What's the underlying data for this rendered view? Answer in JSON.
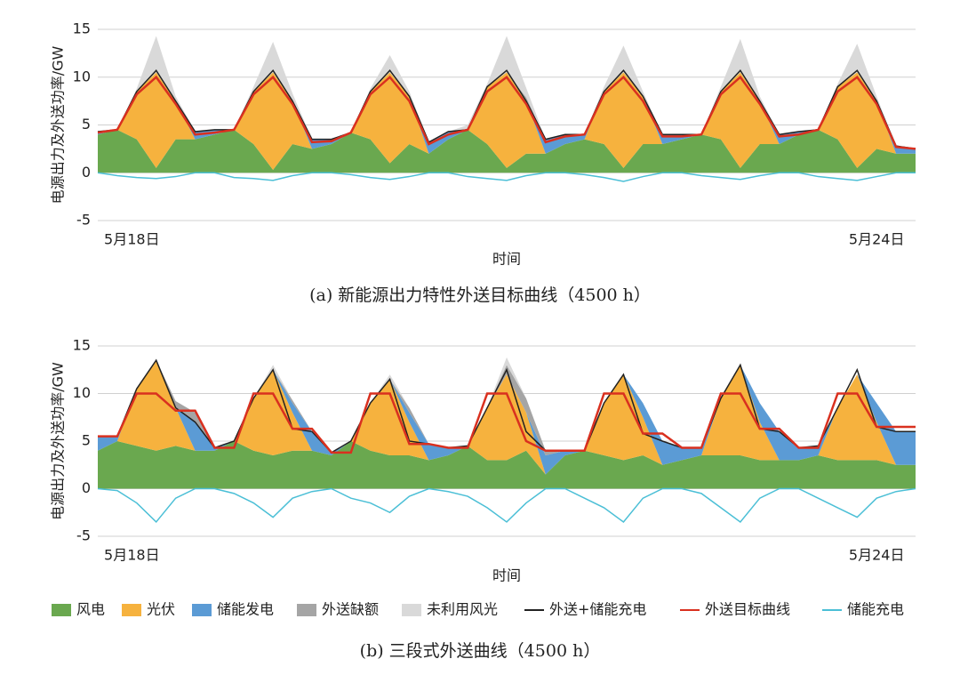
{
  "chart_data": [
    {
      "type": "area",
      "caption": "(a) 新能源出力特性外送目标曲线（4500 h）",
      "ylabel": "电源出力及外送功率/GW",
      "xlabel": "时间",
      "x": [
        0,
        4,
        8,
        12,
        16,
        20,
        24,
        28,
        32,
        36,
        40,
        44,
        48,
        52,
        56,
        60,
        64,
        68,
        72,
        76,
        80,
        84,
        88,
        92,
        96,
        100,
        104,
        108,
        112,
        116,
        120,
        124,
        128,
        132,
        136,
        140,
        144,
        148,
        152,
        156,
        160,
        164,
        168
      ],
      "xlim": [
        0,
        168
      ],
      "xticks": [
        {
          "value": 7,
          "label": "5月18日"
        },
        {
          "value": 160,
          "label": "5月24日"
        }
      ],
      "ylim": [
        -5,
        15
      ],
      "yticks": [
        -5,
        0,
        5,
        10,
        15
      ],
      "grid": true,
      "series": [
        {
          "kind": "area",
          "color": "#6aa84f",
          "values": [
            4,
            4.5,
            3.5,
            0.5,
            3.5,
            3.5,
            4,
            4.5,
            3,
            0.3,
            3,
            2.5,
            3,
            4.2,
            3.5,
            1,
            3,
            2,
            3.5,
            4.5,
            3,
            0.5,
            2,
            2,
            3,
            3.5,
            3,
            0.5,
            3,
            3,
            3.5,
            4,
            3.5,
            0.5,
            3,
            3,
            4,
            4.5,
            3.5,
            0.5,
            2.5,
            2,
            2
          ]
        },
        {
          "kind": "area",
          "color": "#f6b23e",
          "values": [
            0,
            0,
            5,
            10,
            4,
            0,
            0,
            0,
            5.5,
            10.2,
            4.5,
            0,
            0,
            0,
            5,
            9.5,
            5,
            0,
            0,
            0,
            6,
            10,
            5.5,
            0,
            0,
            0,
            5.5,
            10,
            5,
            0,
            0,
            0,
            5,
            10,
            4.5,
            0,
            0,
            0,
            5.5,
            10,
            5,
            0,
            0
          ]
        },
        {
          "kind": "area",
          "color": "#5b9bd5",
          "values": [
            0.3,
            0,
            0,
            0,
            0,
            0.8,
            0.5,
            0,
            0,
            0,
            0,
            1,
            0.5,
            0,
            0,
            0,
            0,
            1.2,
            0.8,
            0,
            0,
            0,
            0,
            1.5,
            1,
            0.5,
            0,
            0,
            0,
            1,
            0.5,
            0,
            0,
            0,
            0,
            1,
            0.3,
            0,
            0,
            0,
            0,
            0.8,
            0.5
          ]
        },
        {
          "kind": "area",
          "color": "#a5a5a5",
          "values": [
            0,
            0,
            0,
            0,
            0,
            0,
            0,
            0,
            0,
            0,
            0,
            0,
            0,
            0,
            0,
            0,
            0,
            0,
            0,
            0,
            0,
            0,
            0.4,
            0,
            0,
            0,
            0,
            0,
            0,
            0,
            0,
            0,
            0,
            0,
            0,
            0,
            0,
            0,
            0,
            0,
            0,
            0,
            0
          ]
        },
        {
          "kind": "area",
          "color": "#d9d9d9",
          "values": [
            0,
            0,
            0.3,
            3.8,
            0.5,
            0,
            0,
            0,
            0.5,
            3.2,
            0.8,
            0,
            0,
            0,
            0.3,
            1.8,
            0.5,
            0,
            0,
            0.5,
            0.3,
            3.8,
            1,
            0,
            0,
            0,
            0.5,
            2.8,
            0.5,
            0,
            0,
            0,
            0.5,
            3.5,
            0.5,
            0,
            0,
            0,
            0.3,
            3,
            0.5,
            0,
            0
          ]
        },
        {
          "kind": "line",
          "color": "#222222",
          "values": [
            4.3,
            4.5,
            8.5,
            10.7,
            7.5,
            4.3,
            4.5,
            4.5,
            8.5,
            10.7,
            7.5,
            3.5,
            3.5,
            4.2,
            8.5,
            10.7,
            8,
            3.2,
            4.3,
            4.5,
            9,
            10.7,
            7.5,
            3.5,
            4,
            4,
            8.5,
            10.7,
            8,
            4,
            4,
            4,
            8.5,
            10.7,
            7.5,
            4,
            4.3,
            4.5,
            9,
            10.7,
            7.5,
            2.8,
            2.5
          ]
        },
        {
          "kind": "line",
          "color": "#d9301f",
          "values": [
            4.2,
            4.5,
            8.2,
            10,
            7.2,
            4,
            4.2,
            4.5,
            8.2,
            10,
            7.2,
            3.2,
            3.3,
            4.2,
            8.2,
            10,
            7.5,
            3,
            4,
            4.5,
            8.5,
            10,
            7.2,
            3.2,
            3.8,
            4,
            8.2,
            10,
            7.5,
            3.8,
            3.8,
            4,
            8.2,
            10,
            7.2,
            3.8,
            4,
            4.5,
            8.5,
            10,
            7.2,
            2.7,
            2.5
          ]
        },
        {
          "kind": "line",
          "color": "#4bbfd6",
          "values": [
            0,
            -0.3,
            -0.5,
            -0.6,
            -0.4,
            0,
            0,
            -0.5,
            -0.6,
            -0.8,
            -0.3,
            0,
            0,
            -0.2,
            -0.5,
            -0.7,
            -0.4,
            0,
            0,
            -0.4,
            -0.6,
            -0.8,
            -0.3,
            0,
            0,
            -0.2,
            -0.5,
            -0.9,
            -0.4,
            0,
            0,
            -0.3,
            -0.5,
            -0.7,
            -0.3,
            0,
            0,
            -0.4,
            -0.6,
            -0.8,
            -0.4,
            0,
            0
          ]
        }
      ]
    },
    {
      "type": "area",
      "caption": "(b) 三段式外送曲线（4500 h）",
      "ylabel": "电源出力及外送功率/GW",
      "xlabel": "时间",
      "x": [
        0,
        4,
        8,
        12,
        16,
        20,
        24,
        28,
        32,
        36,
        40,
        44,
        48,
        52,
        56,
        60,
        64,
        68,
        72,
        76,
        80,
        84,
        88,
        92,
        96,
        100,
        104,
        108,
        112,
        116,
        120,
        124,
        128,
        132,
        136,
        140,
        144,
        148,
        152,
        156,
        160,
        164,
        168
      ],
      "xlim": [
        0,
        168
      ],
      "xticks": [
        {
          "value": 7,
          "label": "5月18日"
        },
        {
          "value": 160,
          "label": "5月24日"
        }
      ],
      "ylim": [
        -5,
        15
      ],
      "yticks": [
        -5,
        0,
        5,
        10,
        15
      ],
      "grid": true,
      "series": [
        {
          "name": "风电",
          "kind": "area",
          "color": "#6aa84f",
          "values": [
            4,
            5,
            4.5,
            4,
            4.5,
            4,
            4,
            5,
            4,
            3.5,
            4,
            4,
            3.5,
            5,
            4,
            3.5,
            3.5,
            3,
            3.5,
            4.5,
            3,
            3,
            4,
            1.5,
            3.5,
            4,
            3.5,
            3,
            3.5,
            2.5,
            3,
            3.5,
            3.5,
            3.5,
            3,
            3,
            3,
            3.5,
            3,
            3,
            3,
            2.5,
            2.5
          ]
        },
        {
          "name": "光伏",
          "kind": "area",
          "color": "#f6b23e",
          "values": [
            0,
            0,
            6,
            9.5,
            4,
            0,
            0,
            0,
            5.5,
            9,
            4,
            0,
            0,
            0,
            5,
            8,
            3.5,
            0,
            0,
            0,
            5.5,
            9,
            4,
            0,
            0,
            0,
            5.5,
            9,
            4,
            0,
            0,
            0,
            6,
            9.5,
            4,
            0,
            0,
            0,
            5.5,
            9,
            4,
            0,
            0
          ]
        },
        {
          "name": "储能发电",
          "kind": "area",
          "color": "#5b9bd5",
          "values": [
            1.5,
            0.5,
            0,
            0,
            0,
            3,
            0.3,
            0,
            0,
            0,
            1,
            2,
            0.3,
            0,
            0,
            0,
            1,
            1.7,
            0.8,
            0,
            0,
            0,
            0,
            2,
            0.5,
            0,
            0,
            0,
            1.5,
            2.5,
            1.3,
            0.8,
            0,
            0,
            2,
            3,
            1.3,
            1,
            0,
            0,
            2,
            3.5,
            3.5
          ]
        },
        {
          "name": "外送缺额",
          "kind": "area",
          "color": "#a5a5a5",
          "values": [
            0,
            0,
            0,
            0,
            0.7,
            1,
            0,
            0,
            0,
            0,
            0.3,
            0,
            0,
            0,
            0,
            0,
            0.5,
            0,
            0,
            0,
            0,
            1,
            1.5,
            0.5,
            0,
            0,
            0,
            0,
            0,
            0,
            0,
            0,
            0,
            0,
            0,
            0,
            0,
            0,
            0,
            0,
            0,
            0,
            0
          ]
        },
        {
          "name": "未利用风光",
          "kind": "area",
          "color": "#d9d9d9",
          "values": [
            0,
            0,
            0,
            0,
            0,
            0,
            0,
            0,
            0,
            0.5,
            0,
            0,
            0,
            0,
            0,
            0.5,
            0,
            0,
            0,
            0,
            0,
            0.8,
            0,
            0,
            0,
            0,
            0,
            0,
            0,
            0,
            0,
            0,
            0,
            0,
            0,
            0,
            0,
            0,
            0,
            0,
            0,
            0,
            0
          ]
        },
        {
          "name": "外送+储能充电",
          "kind": "line",
          "color": "#222222",
          "values": [
            5.5,
            5.5,
            10.5,
            13.5,
            8.5,
            7,
            4.3,
            5,
            9.5,
            12.5,
            6.3,
            6,
            3.8,
            5,
            9,
            11.5,
            5,
            4.7,
            4.3,
            4.5,
            8.5,
            12.5,
            6,
            4,
            4,
            4,
            9,
            12,
            5.8,
            5,
            4.3,
            4.3,
            9.5,
            13,
            6.3,
            6,
            4.3,
            4.5,
            8.5,
            12.5,
            6.5,
            6,
            6
          ]
        },
        {
          "name": "外送目标曲线",
          "kind": "line",
          "color": "#d9301f",
          "values": [
            5.5,
            5.5,
            10,
            10,
            8.2,
            8.2,
            4.3,
            4.3,
            10,
            10,
            6.3,
            6.3,
            3.8,
            3.8,
            10,
            10,
            4.7,
            4.7,
            4.3,
            4.3,
            10,
            10,
            5,
            4,
            4,
            4,
            10,
            10,
            5.8,
            5.8,
            4.3,
            4.3,
            10,
            10,
            6.3,
            6.3,
            4.3,
            4.3,
            10,
            10,
            6.5,
            6.5,
            6.5
          ]
        },
        {
          "name": "储能充电",
          "kind": "line",
          "color": "#4bbfd6",
          "values": [
            0,
            -0.2,
            -1.5,
            -3.5,
            -1,
            0,
            0,
            -0.5,
            -1.5,
            -3,
            -1,
            -0.3,
            0,
            -1,
            -1.5,
            -2.5,
            -0.8,
            0,
            -0.3,
            -0.8,
            -2,
            -3.5,
            -1.5,
            0,
            0,
            -1,
            -2,
            -3.5,
            -1,
            0,
            0,
            -0.5,
            -2,
            -3.5,
            -1,
            0,
            0,
            -1,
            -2,
            -3,
            -1,
            -0.3,
            0
          ]
        }
      ]
    }
  ]
}
